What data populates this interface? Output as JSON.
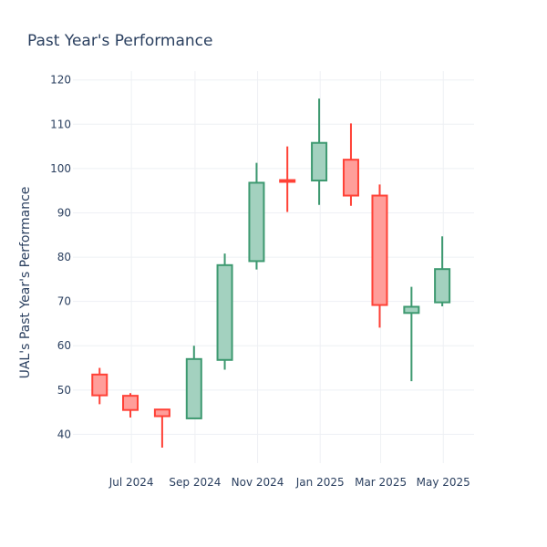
{
  "chart_data": {
    "type": "candlestick",
    "title": "Past Year's Performance",
    "xlabel": "",
    "ylabel": "UAL's Past Year's Performance",
    "ylim": [
      33.5,
      122
    ],
    "yticks": [
      40,
      50,
      60,
      70,
      80,
      90,
      100,
      110,
      120
    ],
    "xlim": [
      "2024-05-05",
      "2025-05-31"
    ],
    "xticks": [
      {
        "date": "2024-07-01",
        "label": "Jul 2024"
      },
      {
        "date": "2024-09-01",
        "label": "Sep 2024"
      },
      {
        "date": "2024-11-01",
        "label": "Nov 2024"
      },
      {
        "date": "2025-01-01",
        "label": "Jan 2025"
      },
      {
        "date": "2025-03-01",
        "label": "Mar 2025"
      },
      {
        "date": "2025-05-01",
        "label": "May 2025"
      }
    ],
    "grid": true,
    "colors": {
      "increasing_line": "#3d9970",
      "increasing_fill": "#a3d1bf",
      "decreasing_line": "#ff4136",
      "decreasing_fill": "#ff9e9a"
    },
    "candles": [
      {
        "date": "2024-05-31",
        "open": 53.5,
        "high": 55.0,
        "low": 46.8,
        "close": 48.8
      },
      {
        "date": "2024-06-30",
        "open": 48.7,
        "high": 49.3,
        "low": 43.8,
        "close": 45.5
      },
      {
        "date": "2024-07-31",
        "open": 45.6,
        "high": 45.6,
        "low": 37.0,
        "close": 44.1
      },
      {
        "date": "2024-08-31",
        "open": 43.6,
        "high": 60.0,
        "low": 43.6,
        "close": 57.0
      },
      {
        "date": "2024-09-30",
        "open": 56.8,
        "high": 80.8,
        "low": 54.6,
        "close": 78.2
      },
      {
        "date": "2024-10-31",
        "open": 79.1,
        "high": 101.3,
        "low": 77.2,
        "close": 96.8
      },
      {
        "date": "2024-11-30",
        "open": 97.4,
        "high": 105.0,
        "low": 90.2,
        "close": 97.0
      },
      {
        "date": "2024-12-31",
        "open": 97.3,
        "high": 115.8,
        "low": 91.8,
        "close": 105.8
      },
      {
        "date": "2025-01-31",
        "open": 102.0,
        "high": 110.2,
        "low": 91.6,
        "close": 93.9
      },
      {
        "date": "2025-02-28",
        "open": 93.9,
        "high": 96.4,
        "low": 64.1,
        "close": 69.2
      },
      {
        "date": "2025-03-31",
        "open": 67.4,
        "high": 73.3,
        "low": 52.0,
        "close": 68.8
      },
      {
        "date": "2025-04-30",
        "open": 69.8,
        "high": 84.7,
        "low": 68.9,
        "close": 77.3
      }
    ]
  }
}
